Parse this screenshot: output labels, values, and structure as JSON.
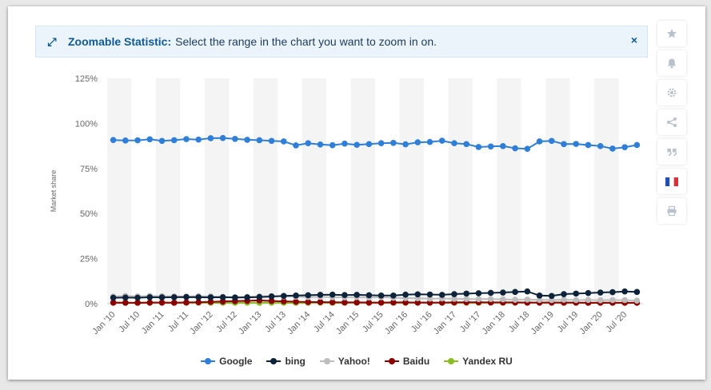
{
  "banner": {
    "title": "Zoomable Statistic:",
    "text": "Select the range in the chart you want to zoom in on.",
    "close": "×"
  },
  "toolbar": {
    "icons": [
      "star-icon",
      "bell-icon",
      "gear-icon",
      "share-icon",
      "quote-icon",
      "french-flag-icon",
      "print-icon"
    ]
  },
  "colors": {
    "google": "#2f7ed8",
    "bing": "#0d233a",
    "yahoo": "#bdbdbd",
    "baidu": "#8b0000",
    "yandex": "#8bbc21",
    "band": "#f4f4f4",
    "axis_text": "#666666"
  },
  "chart_data": {
    "type": "line",
    "ylabel": "Market share",
    "xlabel": "",
    "ylim": [
      0,
      125
    ],
    "yticks": [
      "0%",
      "25%",
      "50%",
      "75%",
      "100%",
      "125%"
    ],
    "x_labels": [
      "Jan '10",
      "Jul '10",
      "Jan '11",
      "Jul '11",
      "Jan '12",
      "Jul '12",
      "Jan '13",
      "Jul '13",
      "Jan '14",
      "Jul '14",
      "Jan '15",
      "Jul '15",
      "Jan '16",
      "Jul '16",
      "Jan '17",
      "Jul '17",
      "Jan '18",
      "Jul '18",
      "Jan '19",
      "Jul '19",
      "Jan '20",
      "Jul '20"
    ],
    "legend_position": "bottom-center",
    "series": [
      {
        "name": "Google",
        "key": "google",
        "values": [
          90.8,
          90.5,
          90.6,
          91.2,
          90.3,
          90.7,
          91.3,
          91.0,
          91.8,
          91.9,
          91.4,
          90.9,
          90.7,
          90.3,
          90.0,
          87.8,
          89.0,
          88.3,
          87.9,
          88.8,
          88.1,
          88.5,
          89.0,
          89.2,
          88.4,
          89.5,
          89.7,
          90.4,
          89.0,
          88.5,
          86.9,
          87.2,
          87.4,
          86.2,
          85.9,
          90.0,
          90.3,
          88.5,
          88.6,
          88.0,
          87.4,
          86.0,
          86.8,
          88.0
        ]
      },
      {
        "name": "bing",
        "key": "bing",
        "values": [
          3.3,
          3.4,
          3.3,
          3.6,
          3.5,
          3.6,
          3.7,
          3.6,
          3.5,
          3.6,
          3.4,
          3.5,
          3.7,
          4.0,
          4.3,
          4.5,
          4.7,
          4.9,
          5.0,
          4.8,
          4.9,
          4.7,
          4.5,
          4.5,
          5.0,
          5.2,
          5.1,
          4.9,
          5.3,
          5.6,
          5.8,
          6.0,
          6.2,
          6.5,
          6.8,
          4.5,
          4.3,
          5.3,
          5.6,
          5.9,
          6.2,
          6.4,
          6.8,
          6.5
        ]
      },
      {
        "name": "Yahoo!",
        "key": "yahoo",
        "values": [
          4.0,
          4.3,
          4.1,
          4.3,
          4.2,
          4.1,
          4.0,
          4.2,
          4.1,
          3.8,
          3.6,
          3.8,
          4.1,
          4.2,
          4.0,
          3.9,
          3.7,
          3.8,
          3.6,
          3.5,
          3.7,
          3.4,
          3.6,
          3.3,
          3.1,
          3.0,
          2.8,
          2.9,
          2.7,
          2.6,
          2.5,
          2.6,
          2.4,
          2.2,
          2.3,
          2.1,
          2.0,
          2.2,
          2.0,
          2.1,
          1.9,
          2.0,
          2.0,
          1.7
        ]
      },
      {
        "name": "Baidu",
        "key": "baidu",
        "values": [
          0.6,
          0.5,
          0.5,
          0.6,
          0.6,
          0.5,
          0.7,
          0.8,
          1.0,
          1.2,
          1.4,
          1.6,
          1.8,
          1.5,
          1.3,
          1.1,
          0.9,
          0.9,
          0.8,
          0.7,
          0.7,
          0.6,
          0.6,
          0.7,
          0.7,
          0.6,
          0.6,
          0.6,
          0.7,
          0.8,
          0.8,
          0.7,
          0.7,
          0.7,
          0.6,
          0.6,
          0.6,
          0.6,
          0.6,
          0.5,
          0.5,
          0.5,
          0.5,
          0.5
        ]
      },
      {
        "name": "Yandex RU",
        "key": "yandex",
        "values": [
          0.5,
          0.5,
          0.5,
          0.6,
          0.6,
          0.5,
          0.5,
          0.6,
          0.5,
          0.5,
          0.5,
          0.6,
          0.5,
          0.6,
          0.5,
          0.5,
          0.5,
          0.6,
          0.5,
          0.5,
          0.6,
          0.5,
          0.5,
          0.5,
          0.5,
          0.6,
          0.6,
          0.5,
          0.5,
          0.5,
          0.5,
          0.6,
          0.5,
          0.6,
          0.6,
          0.6,
          0.6,
          0.5,
          0.5,
          0.5,
          0.6,
          0.5,
          0.5,
          0.5
        ]
      }
    ]
  }
}
